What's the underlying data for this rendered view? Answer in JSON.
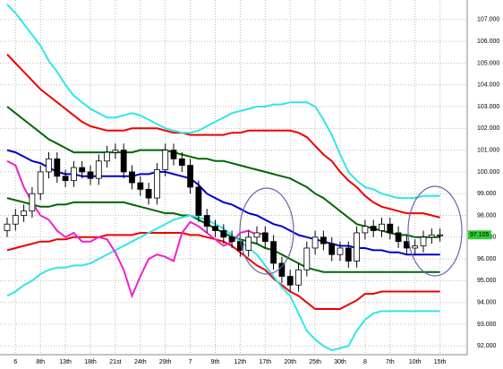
{
  "chart_data": {
    "type": "candlestick",
    "categories": [
      null,
      "6",
      null,
      null,
      "8th",
      null,
      null,
      "13th",
      null,
      null,
      "18th",
      null,
      null,
      "21st",
      null,
      null,
      "24th",
      null,
      null,
      "29th",
      null,
      null,
      "7",
      null,
      null,
      "9th",
      null,
      null,
      "12th",
      null,
      null,
      "17th",
      null,
      null,
      "20th",
      null,
      null,
      "25th",
      null,
      null,
      "30th",
      null,
      null,
      "8",
      null,
      null,
      "7th",
      null,
      null,
      "10th",
      null,
      null,
      "15th"
    ],
    "open": [
      97.3,
      97.6,
      98.0,
      98.2,
      99.0,
      100.0,
      100.6,
      99.8,
      99.6,
      100.2,
      100.0,
      99.7,
      100.5,
      100.9,
      101.0,
      100.0,
      99.5,
      99.2,
      98.8,
      100.1,
      101.0,
      100.6,
      100.3,
      99.3,
      98.0,
      97.5,
      97.3,
      97.0,
      96.8,
      96.4,
      97.0,
      97.2,
      96.8,
      95.8,
      95.2,
      94.8,
      95.5,
      96.5,
      97.0,
      96.7,
      96.2,
      96.5,
      95.9,
      97.2,
      97.5,
      97.3,
      97.6,
      97.2,
      96.8,
      96.5,
      96.6,
      97.0,
      97.1
    ],
    "high": [
      97.9,
      98.3,
      98.5,
      99.3,
      100.3,
      100.9,
      100.9,
      100.1,
      100.5,
      100.5,
      100.3,
      100.8,
      101.2,
      101.3,
      101.3,
      100.3,
      99.8,
      99.5,
      100.4,
      101.3,
      101.3,
      100.9,
      100.6,
      99.6,
      98.3,
      97.8,
      97.6,
      97.3,
      97.1,
      97.3,
      97.5,
      97.5,
      97.1,
      96.1,
      95.5,
      95.8,
      96.8,
      97.3,
      97.3,
      97.0,
      96.8,
      96.8,
      97.5,
      97.8,
      97.8,
      97.9,
      97.9,
      97.5,
      97.1,
      96.9,
      97.3,
      97.4,
      97.4
    ],
    "low": [
      97.0,
      97.3,
      97.7,
      97.9,
      98.7,
      99.7,
      99.5,
      99.3,
      99.3,
      99.7,
      99.4,
      99.4,
      100.2,
      100.6,
      99.7,
      99.2,
      98.9,
      98.5,
      98.5,
      99.8,
      100.3,
      100.0,
      99.0,
      97.7,
      97.2,
      97.0,
      96.7,
      96.5,
      96.1,
      96.1,
      96.7,
      96.5,
      95.5,
      94.9,
      94.5,
      94.5,
      95.2,
      96.2,
      96.4,
      95.9,
      95.9,
      95.6,
      95.6,
      96.9,
      97.0,
      97.0,
      96.9,
      96.5,
      96.2,
      96.2,
      96.3,
      96.7,
      96.8
    ],
    "close": [
      97.6,
      98.0,
      98.2,
      99.0,
      100.0,
      100.6,
      99.8,
      99.6,
      100.2,
      100.0,
      99.7,
      100.5,
      100.9,
      101.0,
      100.0,
      99.5,
      99.2,
      98.8,
      100.1,
      101.0,
      100.6,
      100.3,
      99.3,
      98.0,
      97.5,
      97.3,
      97.0,
      96.8,
      96.4,
      97.0,
      97.2,
      96.8,
      95.8,
      95.2,
      94.8,
      95.5,
      96.5,
      97.0,
      96.7,
      96.2,
      96.5,
      95.9,
      97.2,
      97.5,
      97.3,
      97.6,
      97.2,
      96.8,
      96.5,
      96.6,
      97.0,
      97.1,
      97.105
    ],
    "last_price_label": "97.105",
    "up_color": "#ffffff",
    "down_color": "#000000",
    "last_price_color": "#33cc33",
    "series": [
      {
        "color": "#0000cc",
        "values": [
          101.0,
          100.9,
          100.7,
          100.5,
          100.4,
          100.2,
          100.0,
          99.9,
          99.9,
          99.8,
          99.8,
          99.8,
          99.8,
          99.8,
          99.8,
          99.8,
          99.9,
          99.9,
          100.0,
          100.0,
          99.9,
          99.8,
          99.7,
          99.4,
          99.0,
          98.8,
          98.6,
          98.5,
          98.3,
          98.1,
          98.0,
          97.8,
          97.6,
          97.5,
          97.3,
          97.1,
          97.0,
          96.9,
          96.8,
          96.7,
          96.6,
          96.6,
          96.5,
          96.5,
          96.4,
          96.4,
          96.3,
          96.3,
          96.2,
          96.2,
          96.2,
          96.2,
          96.2
        ]
      },
      {
        "color": "#006600",
        "values": [
          103.0,
          102.7,
          102.4,
          102.1,
          101.8,
          101.5,
          101.3,
          101.1,
          100.9,
          100.9,
          100.9,
          100.9,
          100.9,
          100.9,
          100.9,
          100.9,
          101.0,
          101.0,
          101.0,
          101.0,
          100.9,
          100.8,
          100.7,
          100.6,
          100.6,
          100.5,
          100.5,
          100.4,
          100.3,
          100.2,
          100.1,
          100.0,
          99.9,
          99.8,
          99.7,
          99.5,
          99.3,
          99.0,
          98.8,
          98.5,
          98.2,
          97.9,
          97.6,
          97.5,
          97.4,
          97.3,
          97.2,
          97.1,
          97.1,
          97.0,
          97.0,
          97.0,
          97.0
        ]
      },
      {
        "color": "#006600",
        "values": [
          98.8,
          98.7,
          98.6,
          98.5,
          98.4,
          98.4,
          98.5,
          98.5,
          98.6,
          98.6,
          98.6,
          98.6,
          98.6,
          98.6,
          98.6,
          98.5,
          98.4,
          98.3,
          98.2,
          98.1,
          98.1,
          98.0,
          98.0,
          97.8,
          97.6,
          97.4,
          97.2,
          97.0,
          96.9,
          96.8,
          96.7,
          96.5,
          96.4,
          96.2,
          96.0,
          95.8,
          95.6,
          95.5,
          95.4,
          95.4,
          95.4,
          95.4,
          95.4,
          95.4,
          95.4,
          95.4,
          95.4,
          95.4,
          95.4,
          95.4,
          95.4,
          95.4,
          95.4
        ]
      },
      {
        "color": "#ee0000",
        "values": [
          105.4,
          105.0,
          104.6,
          104.2,
          103.8,
          103.5,
          103.2,
          102.9,
          102.6,
          102.3,
          102.1,
          102.0,
          101.9,
          101.9,
          101.9,
          102.0,
          102.0,
          102.0,
          102.0,
          101.9,
          101.8,
          101.8,
          101.7,
          101.7,
          101.7,
          101.7,
          101.7,
          101.8,
          101.8,
          101.9,
          101.9,
          101.9,
          101.9,
          101.9,
          101.9,
          101.8,
          101.6,
          101.2,
          100.8,
          100.5,
          100.0,
          99.6,
          99.3,
          98.9,
          98.6,
          98.4,
          98.3,
          98.2,
          98.1,
          98.1,
          98.1,
          98.0,
          97.9
        ]
      },
      {
        "color": "#ee0000",
        "values": [
          96.4,
          96.5,
          96.6,
          96.7,
          96.8,
          96.8,
          96.9,
          96.9,
          97.0,
          97.0,
          97.0,
          97.0,
          97.1,
          97.1,
          97.1,
          97.1,
          97.2,
          97.2,
          97.2,
          97.2,
          97.2,
          97.2,
          97.1,
          97.1,
          97.0,
          96.9,
          96.8,
          96.6,
          96.3,
          96.0,
          95.7,
          95.5,
          95.1,
          94.8,
          94.5,
          94.3,
          94.0,
          93.7,
          93.7,
          93.7,
          93.7,
          93.9,
          94.1,
          94.4,
          94.4,
          94.5,
          94.5,
          94.5,
          94.5,
          94.5,
          94.5,
          94.5,
          94.5
        ]
      },
      {
        "color": "#33e5e5",
        "values": [
          107.7,
          107.3,
          106.8,
          106.3,
          105.8,
          105.1,
          104.6,
          104.0,
          103.5,
          103.2,
          102.9,
          102.7,
          102.5,
          102.5,
          102.6,
          102.7,
          102.6,
          102.4,
          102.2,
          102.0,
          101.9,
          101.8,
          101.8,
          101.9,
          102.1,
          102.3,
          102.5,
          102.7,
          102.8,
          102.9,
          103.0,
          103.0,
          103.1,
          103.1,
          103.2,
          103.2,
          103.2,
          103.0,
          102.4,
          101.7,
          100.8,
          100.0,
          99.6,
          99.3,
          99.2,
          99.0,
          98.9,
          98.8,
          98.8,
          98.8,
          98.9,
          98.9,
          98.9
        ]
      },
      {
        "color": "#33e5e5",
        "values": [
          94.3,
          94.5,
          94.8,
          95.0,
          95.3,
          95.5,
          95.6,
          95.6,
          95.7,
          95.7,
          95.8,
          96.0,
          96.2,
          96.4,
          96.6,
          96.8,
          97.0,
          97.2,
          97.4,
          97.6,
          97.8,
          97.9,
          98.0,
          97.9,
          97.8,
          97.6,
          97.4,
          97.1,
          96.8,
          96.5,
          96.2,
          95.7,
          95.2,
          94.7,
          94.3,
          93.5,
          92.7,
          92.3,
          92.0,
          91.8,
          91.9,
          92.0,
          92.7,
          93.2,
          93.5,
          93.6,
          93.6,
          93.6,
          93.6,
          93.6,
          93.6,
          93.6,
          93.6
        ]
      },
      {
        "color": "#ee22cc",
        "values": [
          100.5,
          100.3,
          99.3,
          98.6,
          98.0,
          97.8,
          97.3,
          97.0,
          97.2,
          96.8,
          96.8,
          97.0,
          96.9,
          96.3,
          95.5,
          94.3,
          95.2,
          96.0,
          96.2,
          96.1,
          95.9,
          97.2,
          97.7,
          97.5,
          97.2,
          96.9,
          96.6,
          96.8,
          97.2,
          97.3,
          97.1,
          97.2,
          null,
          null,
          null,
          null,
          null,
          null,
          null,
          null,
          null,
          null,
          null,
          null,
          null,
          null,
          null,
          null,
          null,
          null,
          null,
          null,
          null
        ]
      }
    ],
    "ylim": [
      91.6,
      107.9
    ],
    "yticks": [
      {
        "value": 92,
        "label": "92.000"
      },
      {
        "value": 93,
        "label": "93.000"
      },
      {
        "value": 94,
        "label": "94.000"
      },
      {
        "value": 95,
        "label": "95.000"
      },
      {
        "value": 96,
        "label": "96.000"
      },
      {
        "value": 97,
        "label": "97.000"
      },
      {
        "value": 98,
        "label": "98.000"
      },
      {
        "value": 99,
        "label": "99.000"
      },
      {
        "value": 100,
        "label": "100.000"
      },
      {
        "value": 101,
        "label": "101.000"
      },
      {
        "value": 102,
        "label": "102.000"
      },
      {
        "value": 103,
        "label": "103.000"
      },
      {
        "value": 104,
        "label": "104.000"
      },
      {
        "value": 105,
        "label": "105.000"
      },
      {
        "value": 106,
        "label": "106.000"
      },
      {
        "value": 107,
        "label": "107.000"
      }
    ],
    "grid": true
  }
}
